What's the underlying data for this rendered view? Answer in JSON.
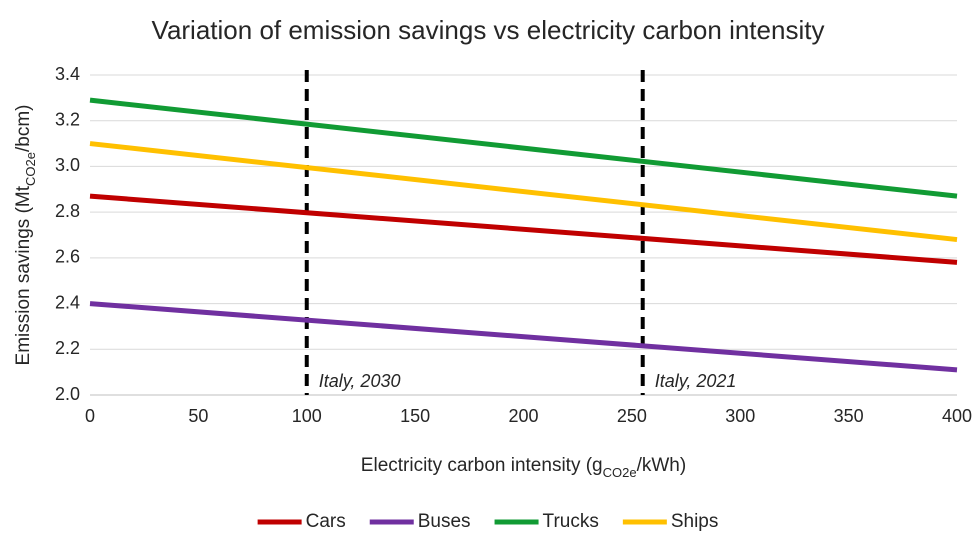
{
  "chart_data": {
    "type": "line",
    "title": "Variation of emission savings vs electricity carbon intensity",
    "xlabel": [
      "Electricity carbon intensity (g",
      "CO2e",
      "/kWh)"
    ],
    "ylabel": [
      "Emission savings (Mt",
      "CO2e",
      "/bcm)"
    ],
    "x": [
      0,
      400
    ],
    "series": [
      {
        "name": "Cars",
        "color": "#c00000",
        "values": [
          2.87,
          2.58
        ]
      },
      {
        "name": "Buses",
        "color": "#7030a0",
        "values": [
          2.4,
          2.11
        ]
      },
      {
        "name": "Trucks",
        "color": "#119b34",
        "values": [
          3.29,
          2.87
        ]
      },
      {
        "name": "Ships",
        "color": "#ffc000",
        "values": [
          3.1,
          2.68
        ]
      }
    ],
    "xlim": [
      0,
      400
    ],
    "xticks": [
      0,
      50,
      100,
      150,
      200,
      250,
      300,
      350,
      400
    ],
    "ylim": [
      2,
      3.4
    ],
    "yticks": [
      {
        "value": 2,
        "label": "2.0"
      },
      2.2,
      2.4,
      2.6,
      2.8,
      {
        "value": 3,
        "label": "3.0"
      },
      3.2,
      3.4
    ],
    "grid": true,
    "legend": "bottom",
    "vlines": [
      {
        "x": 100,
        "label": "Italy, 2030"
      },
      {
        "x": 255,
        "label": "Italy, 2021"
      }
    ]
  }
}
